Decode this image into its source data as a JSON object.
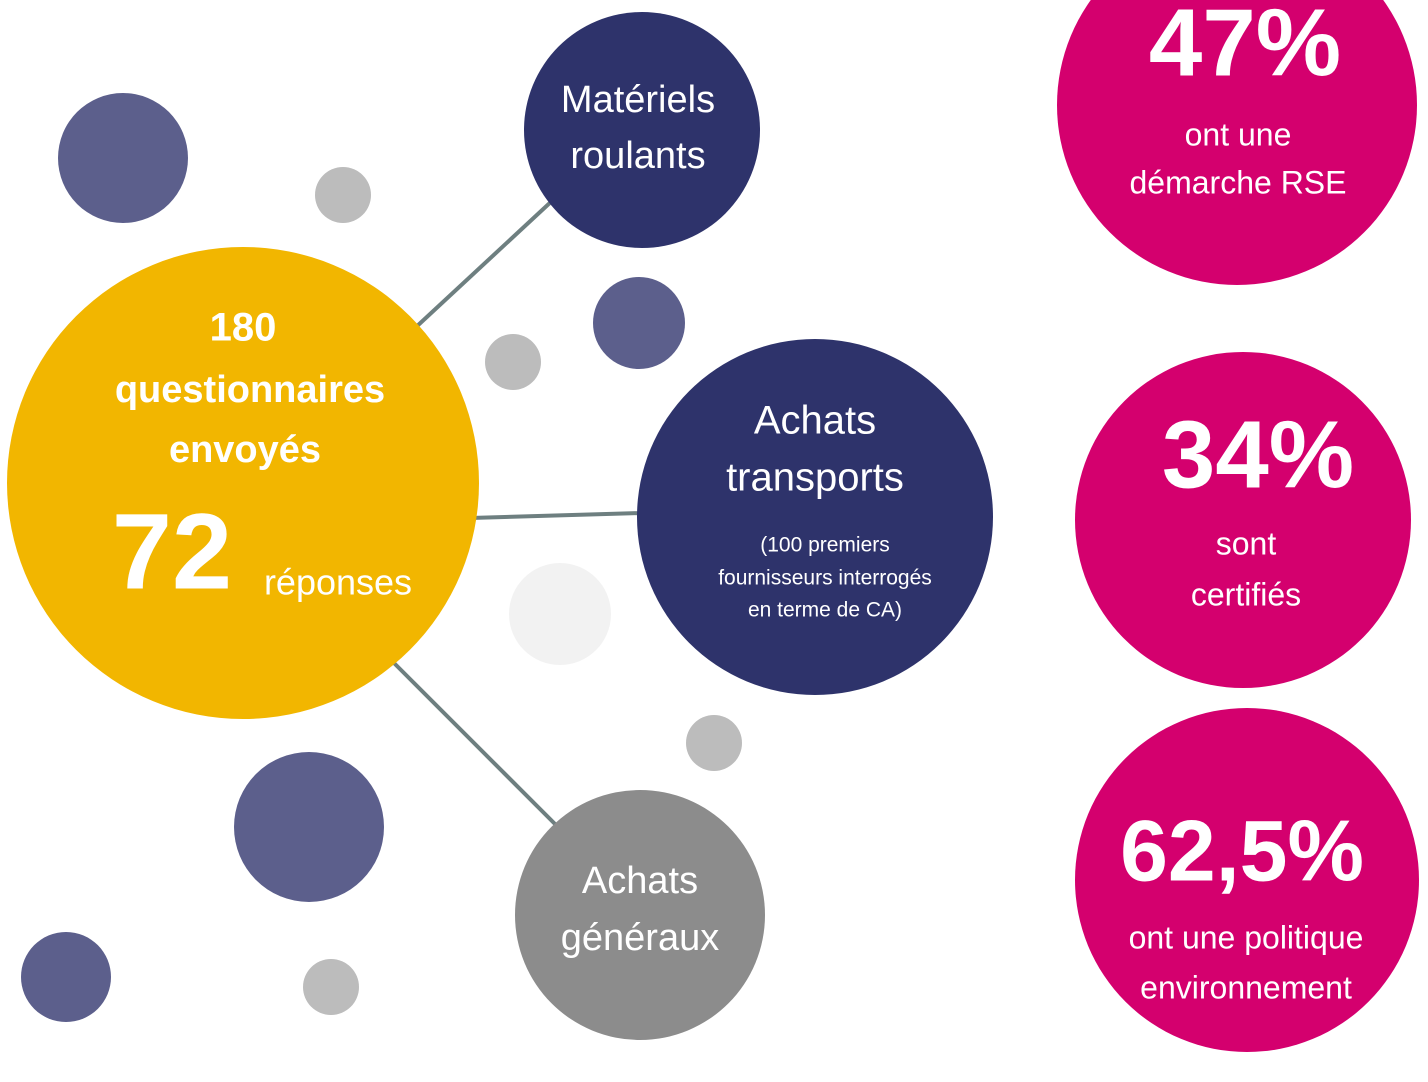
{
  "center": {
    "lines": [
      "180",
      "questionnaires",
      "envoyés"
    ],
    "count": "72",
    "count_label": "réponses"
  },
  "branches": [
    {
      "lines": [
        "Matériels",
        "roulants"
      ]
    },
    {
      "lines": [
        "Achats",
        "transports"
      ],
      "note": [
        "(100 premiers",
        "fournisseurs interrogés",
        "en terme de CA)"
      ]
    },
    {
      "lines": [
        "Achats",
        "généraux"
      ]
    }
  ],
  "stats": [
    {
      "value": "47%",
      "lines": [
        "ont une",
        "démarche RSE"
      ]
    },
    {
      "value": "34%",
      "lines": [
        "sont",
        "certifiés"
      ]
    },
    {
      "value": "62,5%",
      "lines": [
        "ont une politique",
        "environnement"
      ]
    }
  ]
}
